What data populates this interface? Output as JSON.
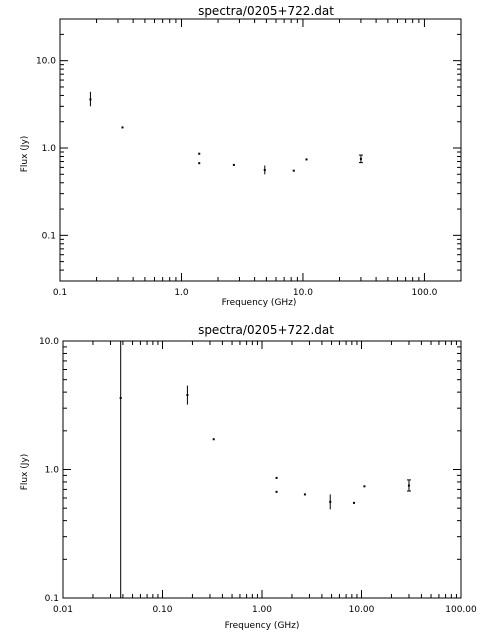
{
  "chart_data": [
    {
      "type": "scatter",
      "title": "spectra/0205+722.dat",
      "xlabel": "Frequency (GHz)",
      "ylabel": "Flux (Jy)",
      "xscale": "log",
      "yscale": "log",
      "xlim": [
        0.1,
        200
      ],
      "ylim": [
        0.03,
        30
      ],
      "xticks": [
        0.1,
        1.0,
        10.0,
        100.0
      ],
      "xticklabels": [
        "0.1",
        "1.0",
        "10.0",
        "100.0"
      ],
      "yticks": [
        0.1,
        1.0,
        10.0
      ],
      "yticklabels": [
        "0.1",
        "1.0",
        "10.0"
      ],
      "points": [
        {
          "x": 0.178,
          "y": 3.6,
          "ylo": 3.0,
          "yhi": 4.4
        },
        {
          "x": 0.327,
          "y": 1.72
        },
        {
          "x": 1.4,
          "y": 0.86
        },
        {
          "x": 1.4,
          "y": 0.67
        },
        {
          "x": 2.7,
          "y": 0.64
        },
        {
          "x": 4.85,
          "y": 0.56,
          "ylo": 0.5,
          "yhi": 0.63
        },
        {
          "x": 8.4,
          "y": 0.55
        },
        {
          "x": 10.7,
          "y": 0.74
        },
        {
          "x": 30.0,
          "y": 0.75,
          "ylo": 0.68,
          "yhi": 0.83
        }
      ]
    },
    {
      "type": "scatter",
      "title": "spectra/0205+722.dat",
      "xlabel": "Frequency (GHz)",
      "ylabel": "Flux (Jy)",
      "xscale": "log",
      "yscale": "log",
      "xlim": [
        0.01,
        100
      ],
      "ylim": [
        0.1,
        10
      ],
      "xticks": [
        0.01,
        0.1,
        1.0,
        10.0,
        100.0
      ],
      "xticklabels": [
        "0.01",
        "0.10",
        "1.00",
        "10.00",
        "100.00"
      ],
      "yticks": [
        0.1,
        1.0,
        10.0
      ],
      "yticklabels": [
        "0.1",
        "1.0",
        "10.0"
      ],
      "points": [
        {
          "x": 0.038,
          "y": 3.6,
          "ylo": 0.1,
          "yhi": 10.0
        },
        {
          "x": 0.178,
          "y": 3.8,
          "ylo": 3.2,
          "yhi": 4.5
        },
        {
          "x": 0.327,
          "y": 1.72
        },
        {
          "x": 1.4,
          "y": 0.86
        },
        {
          "x": 1.4,
          "y": 0.67
        },
        {
          "x": 2.7,
          "y": 0.64
        },
        {
          "x": 4.85,
          "y": 0.56,
          "ylo": 0.49,
          "yhi": 0.64
        },
        {
          "x": 8.4,
          "y": 0.55
        },
        {
          "x": 10.7,
          "y": 0.74
        },
        {
          "x": 30.0,
          "y": 0.75,
          "ylo": 0.68,
          "yhi": 0.83
        }
      ]
    }
  ]
}
